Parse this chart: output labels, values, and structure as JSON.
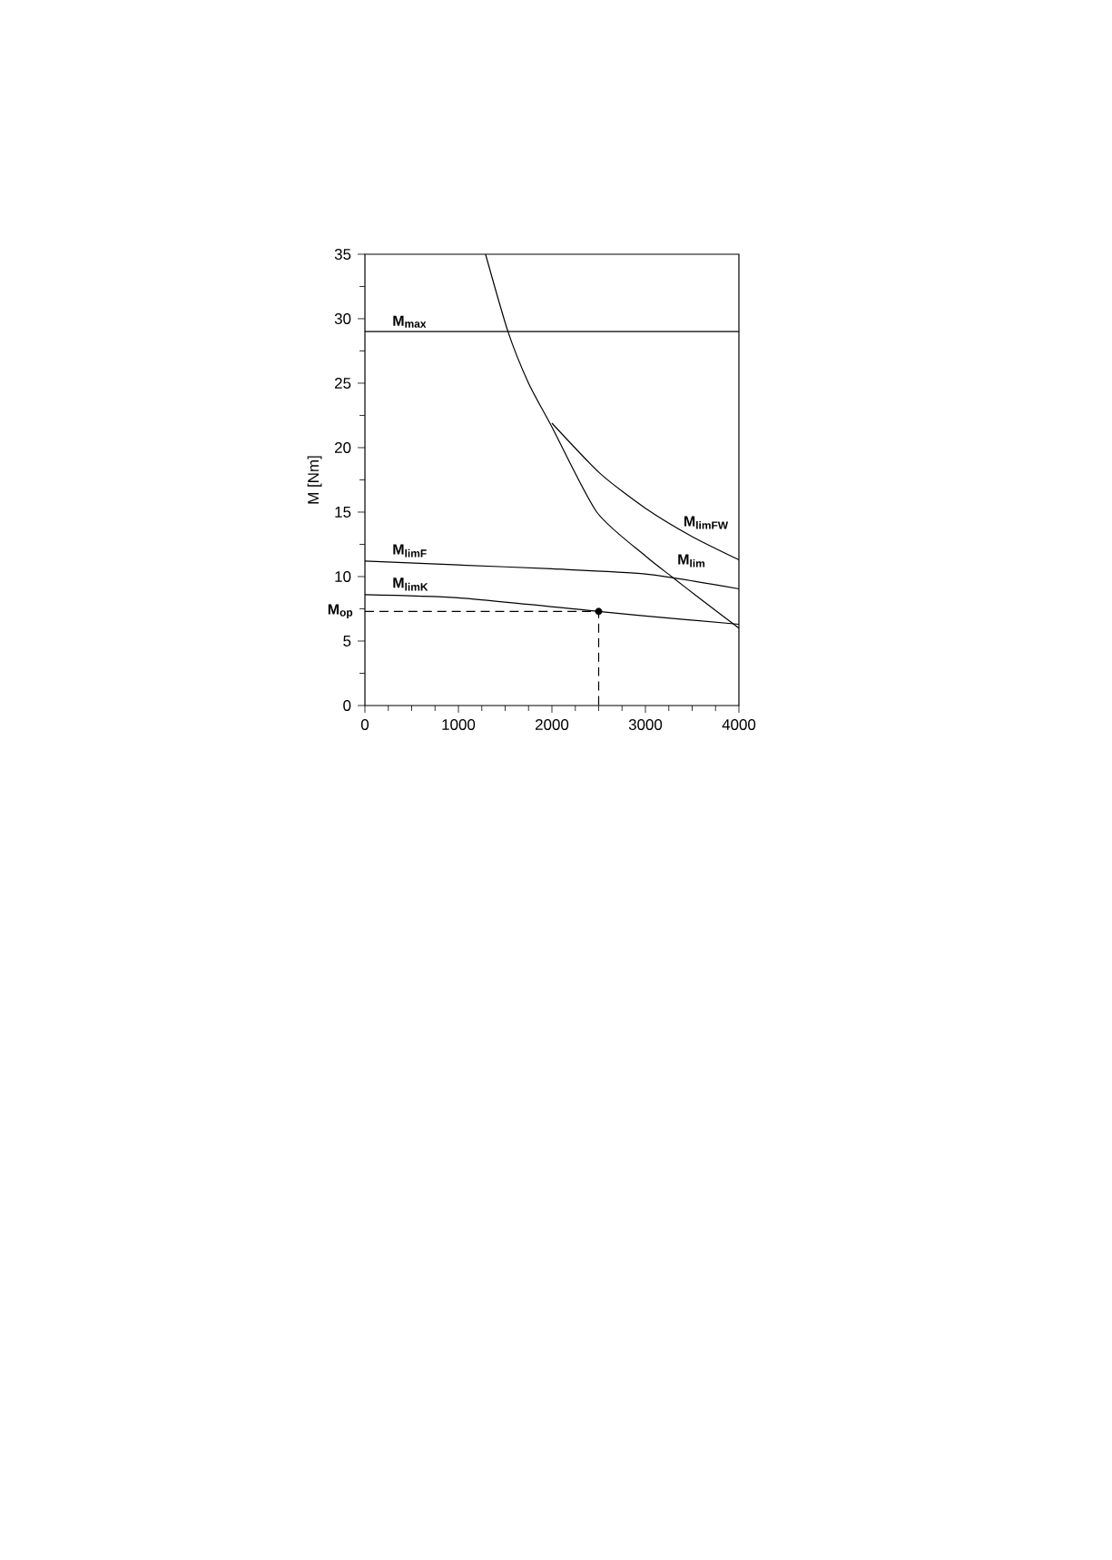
{
  "chart_data": {
    "type": "line",
    "ylabel": "M [Nm]",
    "xlim": [
      0,
      4000
    ],
    "ylim": [
      0,
      35
    ],
    "xticks": [
      0,
      1000,
      2000,
      3000,
      4000
    ],
    "yticks": [
      0,
      5,
      10,
      15,
      20,
      25,
      30,
      35
    ],
    "grid": false,
    "legend": "left",
    "annotations": [
      {
        "text": "M$_{op}$",
        "x": 0,
        "y": 7.3
      }
    ],
    "series": [
      {
        "name": "M$_{max}$",
        "color": "#000000",
        "x": [
          0,
          4000
        ],
        "values": [
          29,
          29
        ]
      },
      {
        "name": "M$_{lim}$",
        "color": "#000000",
        "x": [
          1290,
          1530,
          1750,
          2000,
          2480,
          3000,
          3280,
          3600,
          4000
        ],
        "values": [
          35,
          29,
          25,
          21.6,
          15,
          11.6,
          10,
          8.2,
          6
        ]
      },
      {
        "name": "M$_{limFW}$",
        "color": "#000000",
        "x": [
          2000,
          2515,
          3000,
          3500,
          4000
        ],
        "values": [
          21.9,
          18,
          15.3,
          13.1,
          11.3
        ]
      },
      {
        "name": "M$_{limF}$",
        "color": "#000000",
        "x": [
          0,
          1000,
          2000,
          3000,
          4000
        ],
        "values": [
          11.2,
          10.9,
          10.6,
          10.2,
          9.05
        ]
      },
      {
        "name": "M$_{limK}$",
        "color": "#000000",
        "x": [
          0,
          1000,
          2500,
          3000,
          4000
        ],
        "values": [
          8.6,
          8.35,
          7.3,
          6.95,
          6.3
        ]
      },
      {
        "type": "line",
        "line_style": "dashed",
        "color": "#000000",
        "x": [
          0,
          2500,
          2500
        ],
        "values": [
          7.3,
          7.3,
          0
        ]
      },
      {
        "type": "scatter",
        "marker": "circle",
        "color": "#000000",
        "x": [
          2500
        ],
        "values": [
          7.3
        ]
      }
    ]
  }
}
